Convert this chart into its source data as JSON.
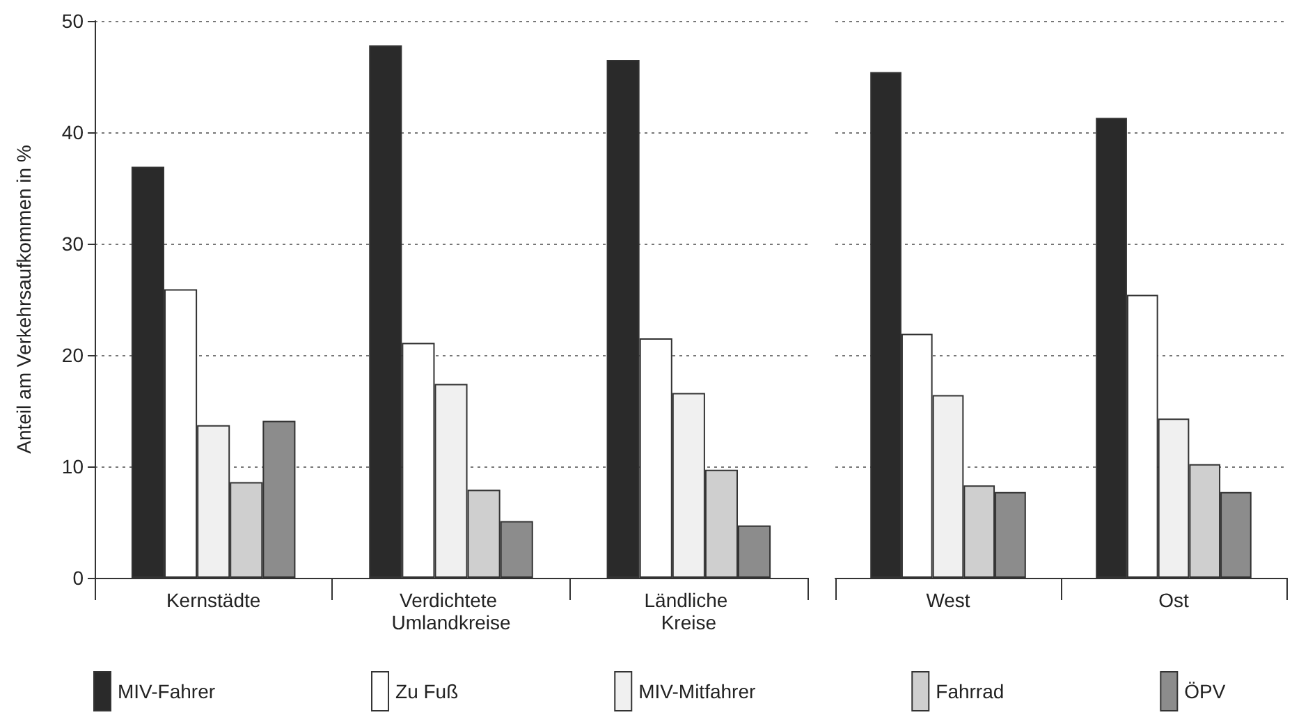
{
  "chart_data": [
    {
      "type": "bar",
      "ylabel": "Anteil am Verkehrsaufkommen in %",
      "categories": [
        "Kernstädte",
        "Verdichtete Umlandkreise",
        "Ländliche Kreise"
      ],
      "ylim": [
        0,
        50
      ],
      "yticks": [
        0,
        10,
        20,
        30,
        40,
        50
      ],
      "grid": "y",
      "legend": "bottom",
      "series": [
        {
          "name": "MIV-Fahrer",
          "color": "#2a2a2a",
          "values": [
            36.9,
            47.8,
            46.5
          ]
        },
        {
          "name": "Zu Fuß",
          "color": "#ffffff",
          "values": [
            25.9,
            21.1,
            21.5
          ]
        },
        {
          "name": "MIV-Mitfahrer",
          "color": "#f0f0f0",
          "values": [
            13.7,
            17.4,
            16.6
          ]
        },
        {
          "name": "Fahrrad",
          "color": "#cfcfcf",
          "values": [
            8.6,
            7.9,
            9.7
          ]
        },
        {
          "name": "ÖPV",
          "color": "#8c8c8c",
          "values": [
            14.1,
            5.1,
            4.7
          ]
        }
      ]
    },
    {
      "type": "bar",
      "categories": [
        "West",
        "Ost"
      ],
      "ylim": [
        0,
        50
      ],
      "yticks": [
        0,
        10,
        20,
        30,
        40,
        50
      ],
      "grid": "y",
      "tick_labels": "x",
      "series": [
        {
          "color": "#2a2a2a",
          "values": [
            45.4,
            41.3
          ]
        },
        {
          "color": "#ffffff",
          "values": [
            21.9,
            25.4
          ]
        },
        {
          "color": "#f0f0f0",
          "values": [
            16.4,
            14.3
          ]
        },
        {
          "color": "#cfcfcf",
          "values": [
            8.3,
            10.2
          ]
        },
        {
          "color": "#8c8c8c",
          "values": [
            7.7,
            7.7
          ]
        }
      ]
    }
  ]
}
